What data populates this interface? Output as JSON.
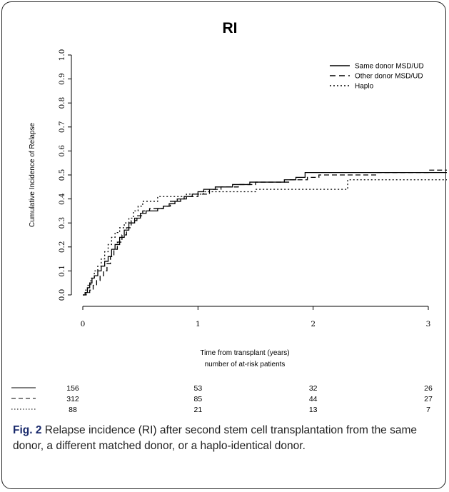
{
  "figure": {
    "label": "Fig. 2",
    "caption": "Relapse incidence (RI) after second stem cell transplantation from the same donor, a different matched donor, or a haplo-identical donor."
  },
  "chart_data": {
    "type": "line",
    "title": "RI",
    "xlabel": "Time from transplant (years)",
    "xlabel2": "number of at-risk patients",
    "ylabel": "Cumulative Incidence of Relapse",
    "xlim": [
      0,
      3.2
    ],
    "ylim": [
      0,
      1.0
    ],
    "xticks": [
      0,
      1,
      2,
      3
    ],
    "yticks": [
      0.0,
      0.1,
      0.2,
      0.3,
      0.4,
      0.5,
      0.6,
      0.7,
      0.8,
      0.9,
      1.0
    ],
    "ytick_labels": [
      "0.0",
      "0.1",
      "0.2",
      "0.3",
      "0.4",
      "0.5",
      "0.6",
      "0.7",
      "0.8",
      "0.9",
      "1.0"
    ],
    "grid": false,
    "legend_position": "top-right",
    "series": [
      {
        "name": "Same donor MSD/UD",
        "style": "solid",
        "color": "#000000",
        "points": [
          [
            0,
            0
          ],
          [
            0.02,
            0.01
          ],
          [
            0.04,
            0.03
          ],
          [
            0.06,
            0.05
          ],
          [
            0.08,
            0.07
          ],
          [
            0.1,
            0.08
          ],
          [
            0.13,
            0.1
          ],
          [
            0.16,
            0.12
          ],
          [
            0.19,
            0.14
          ],
          [
            0.22,
            0.16
          ],
          [
            0.25,
            0.19
          ],
          [
            0.28,
            0.21
          ],
          [
            0.32,
            0.24
          ],
          [
            0.36,
            0.27
          ],
          [
            0.4,
            0.3
          ],
          [
            0.45,
            0.32
          ],
          [
            0.5,
            0.34
          ],
          [
            0.55,
            0.35
          ],
          [
            0.6,
            0.35
          ],
          [
            0.65,
            0.36
          ],
          [
            0.7,
            0.37
          ],
          [
            0.75,
            0.38
          ],
          [
            0.8,
            0.39
          ],
          [
            0.85,
            0.4
          ],
          [
            0.9,
            0.41
          ],
          [
            0.95,
            0.42
          ],
          [
            1.0,
            0.43
          ],
          [
            1.05,
            0.44
          ],
          [
            1.15,
            0.45
          ],
          [
            1.3,
            0.46
          ],
          [
            1.45,
            0.47
          ],
          [
            1.6,
            0.47
          ],
          [
            1.75,
            0.48
          ],
          [
            1.85,
            0.49
          ],
          [
            1.93,
            0.51
          ],
          [
            2.1,
            0.51
          ],
          [
            2.5,
            0.51
          ],
          [
            3.0,
            0.51
          ],
          [
            3.2,
            0.51
          ]
        ]
      },
      {
        "name": "Other donor MSD/UD",
        "style": "dashed",
        "color": "#000000",
        "points": [
          [
            0,
            0
          ],
          [
            0.03,
            0.01
          ],
          [
            0.06,
            0.02
          ],
          [
            0.09,
            0.04
          ],
          [
            0.12,
            0.06
          ],
          [
            0.15,
            0.08
          ],
          [
            0.18,
            0.1
          ],
          [
            0.21,
            0.13
          ],
          [
            0.24,
            0.16
          ],
          [
            0.27,
            0.19
          ],
          [
            0.3,
            0.22
          ],
          [
            0.34,
            0.25
          ],
          [
            0.38,
            0.28
          ],
          [
            0.42,
            0.31
          ],
          [
            0.47,
            0.33
          ],
          [
            0.52,
            0.35
          ],
          [
            0.58,
            0.36
          ],
          [
            0.64,
            0.36
          ],
          [
            0.7,
            0.37
          ],
          [
            0.76,
            0.39
          ],
          [
            0.82,
            0.4
          ],
          [
            0.88,
            0.41
          ],
          [
            0.94,
            0.41
          ],
          [
            1.0,
            0.42
          ],
          [
            1.1,
            0.44
          ],
          [
            1.2,
            0.45
          ],
          [
            1.35,
            0.46
          ],
          [
            1.5,
            0.47
          ],
          [
            1.65,
            0.47
          ],
          [
            1.8,
            0.48
          ],
          [
            1.95,
            0.49
          ],
          [
            2.05,
            0.5
          ],
          [
            2.5,
            0.5
          ],
          [
            2.55,
            0.51
          ],
          [
            3.0,
            0.52
          ],
          [
            3.2,
            0.52
          ]
        ]
      },
      {
        "name": "Haplo",
        "style": "dotted",
        "color": "#000000",
        "points": [
          [
            0,
            0
          ],
          [
            0.02,
            0.02
          ],
          [
            0.04,
            0.04
          ],
          [
            0.07,
            0.07
          ],
          [
            0.1,
            0.1
          ],
          [
            0.13,
            0.12
          ],
          [
            0.16,
            0.15
          ],
          [
            0.19,
            0.18
          ],
          [
            0.22,
            0.21
          ],
          [
            0.25,
            0.24
          ],
          [
            0.28,
            0.26
          ],
          [
            0.32,
            0.28
          ],
          [
            0.36,
            0.3
          ],
          [
            0.4,
            0.32
          ],
          [
            0.44,
            0.35
          ],
          [
            0.48,
            0.37
          ],
          [
            0.52,
            0.39
          ],
          [
            0.6,
            0.39
          ],
          [
            0.65,
            0.41
          ],
          [
            0.8,
            0.41
          ],
          [
            0.9,
            0.42
          ],
          [
            1.0,
            0.42
          ],
          [
            1.05,
            0.43
          ],
          [
            1.4,
            0.43
          ],
          [
            1.5,
            0.44
          ],
          [
            2.25,
            0.44
          ],
          [
            2.3,
            0.48
          ],
          [
            3.2,
            0.48
          ]
        ]
      }
    ],
    "at_risk": {
      "times": [
        0,
        1,
        2,
        3
      ],
      "rows": [
        {
          "style": "solid",
          "values": [
            "156",
            "53",
            "32",
            "26"
          ]
        },
        {
          "style": "dashed",
          "values": [
            "312",
            "85",
            "44",
            "27"
          ]
        },
        {
          "style": "dotted",
          "values": [
            "88",
            "21",
            "13",
            "7"
          ]
        }
      ]
    }
  }
}
